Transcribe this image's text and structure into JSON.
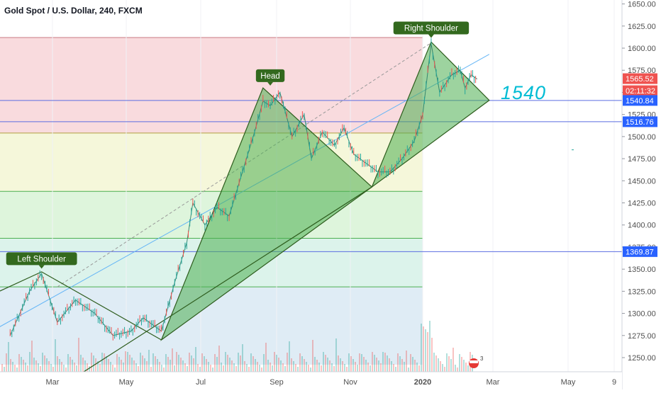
{
  "header": {
    "title": "Gold Spot / U.S. Dollar, 240, FXCM"
  },
  "colors": {
    "up": "#26a69a",
    "down": "#ef5350",
    "fill": "#4caf50",
    "fib_red": "#f7d2d6",
    "fib_yellow": "#f2f5d1",
    "fib_green": "#d6f2d3",
    "fib_teal": "#d3f0e6",
    "fib_blue": "#d7e7f3",
    "fib_line": "#4caf50",
    "hline": "#5b6ee1",
    "price_tag_red": "#ef5350",
    "price_tag_blue": "#2962ff",
    "label_bg": "#33691e",
    "handwriting": "#00bcd4"
  },
  "chart_data": {
    "type": "line",
    "title": "Gold Spot / U.S. Dollar, 240, FXCM",
    "xlabel": "",
    "ylabel": "",
    "x_ticks": [
      "Mar",
      "May",
      "Jul",
      "Sep",
      "Nov",
      "2020",
      "Mar",
      "May",
      "9"
    ],
    "y_ticks": [
      1650.0,
      1625.0,
      1600.0,
      1575.0,
      1550.0,
      1525.0,
      1500.0,
      1475.0,
      1450.0,
      1425.0,
      1400.0,
      1375.0,
      1350.0,
      1325.0,
      1300.0,
      1275.0,
      1250.0
    ],
    "ylim": [
      1242,
      1655
    ],
    "price_points": [
      [
        "2019-01-25",
        1275
      ],
      [
        "2019-02-10",
        1325
      ],
      [
        "2019-02-20",
        1345
      ],
      [
        "2019-03-05",
        1290
      ],
      [
        "2019-03-20",
        1315
      ],
      [
        "2019-04-05",
        1300
      ],
      [
        "2019-04-20",
        1275
      ],
      [
        "2019-05-05",
        1280
      ],
      [
        "2019-05-15",
        1295
      ],
      [
        "2019-05-30",
        1280
      ],
      [
        "2019-06-10",
        1335
      ],
      [
        "2019-06-20",
        1380
      ],
      [
        "2019-06-25",
        1425
      ],
      [
        "2019-07-05",
        1400
      ],
      [
        "2019-07-15",
        1420
      ],
      [
        "2019-07-25",
        1410
      ],
      [
        "2019-08-05",
        1460
      ],
      [
        "2019-08-15",
        1505
      ],
      [
        "2019-08-22",
        1540
      ],
      [
        "2019-08-28",
        1535
      ],
      [
        "2019-09-05",
        1550
      ],
      [
        "2019-09-15",
        1500
      ],
      [
        "2019-09-25",
        1525
      ],
      [
        "2019-10-01",
        1475
      ],
      [
        "2019-10-10",
        1505
      ],
      [
        "2019-10-20",
        1490
      ],
      [
        "2019-10-28",
        1510
      ],
      [
        "2019-11-05",
        1480
      ],
      [
        "2019-11-15",
        1470
      ],
      [
        "2019-11-25",
        1460
      ],
      [
        "2019-12-05",
        1460
      ],
      [
        "2019-12-15",
        1475
      ],
      [
        "2019-12-25",
        1495
      ],
      [
        "2020-01-01",
        1525
      ],
      [
        "2020-01-08",
        1605
      ],
      [
        "2020-01-15",
        1550
      ],
      [
        "2020-01-25",
        1570
      ],
      [
        "2020-02-01",
        1575
      ],
      [
        "2020-02-05",
        1555
      ],
      [
        "2020-02-10",
        1570
      ],
      [
        "2020-02-15",
        1565
      ]
    ],
    "fib_levels": [
      1612,
      1504,
      1438,
      1385,
      1330
    ],
    "fib_range_end": "2020-01-01",
    "horizontal_lines": [
      1540.84,
      1516.76,
      1369.87
    ],
    "current_price": 1565.52,
    "price_labels": [
      {
        "text": "1565.52",
        "value": 1565.52,
        "style": "red"
      },
      {
        "text": "02:11:32",
        "value": 1555,
        "style": "red"
      },
      {
        "text": "1540.84",
        "value": 1540.84,
        "style": "blue"
      },
      {
        "text": "1516.76",
        "value": 1516.76,
        "style": "blue"
      },
      {
        "text": "1369.87",
        "value": 1369.87,
        "style": "blue"
      }
    ],
    "annotations": [
      {
        "text": "Left Shoulder",
        "date": "2019-02-20",
        "value": 1345
      },
      {
        "text": "Head",
        "date": "2019-08-28",
        "value": 1552
      },
      {
        "text": "Right Shoulder",
        "date": "2020-01-08",
        "value": 1606
      }
    ],
    "handwritten_note": "1540"
  }
}
